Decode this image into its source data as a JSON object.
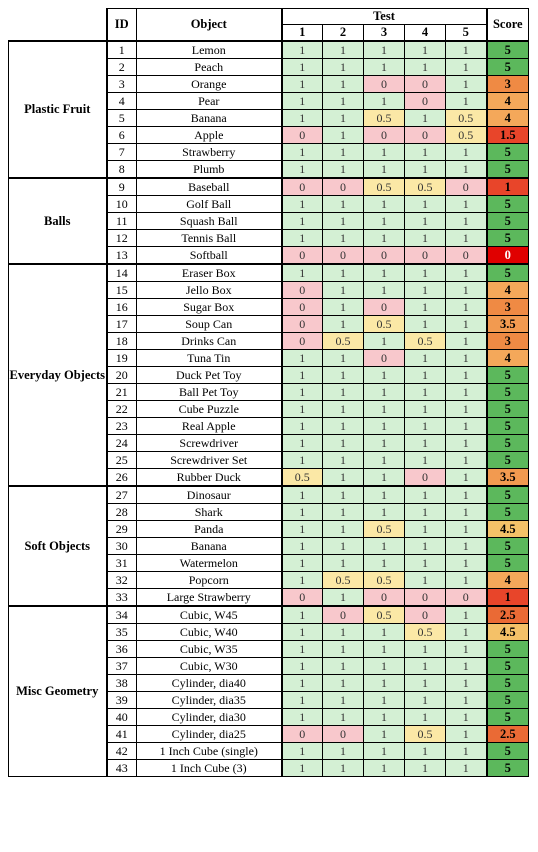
{
  "header": {
    "id_label": "ID",
    "object_label": "Object",
    "test_label": "Test",
    "score_label": "Score",
    "test_numbers": [
      "1",
      "2",
      "3",
      "4",
      "5"
    ]
  },
  "colors": {
    "test_1": "#d4f0d4",
    "test_0.5": "#fbe8a6",
    "test_0": "#f8c8cc",
    "score_5": "#5cb85c",
    "score_4.5": "#f4c168",
    "score_4": "#f4a85a",
    "score_3.5": "#f29a50",
    "score_3": "#ef8a44",
    "score_2.5": "#ea6a35",
    "score_1.5": "#e8452a",
    "score_1": "#e8452a",
    "score_0": "#e00000"
  },
  "groups": [
    {
      "name": "Plastic Fruit",
      "rows": [
        {
          "id": "1",
          "object": "Lemon",
          "tests": [
            "1",
            "1",
            "1",
            "1",
            "1"
          ],
          "score": "5"
        },
        {
          "id": "2",
          "object": "Peach",
          "tests": [
            "1",
            "1",
            "1",
            "1",
            "1"
          ],
          "score": "5"
        },
        {
          "id": "3",
          "object": "Orange",
          "tests": [
            "1",
            "1",
            "0",
            "0",
            "1"
          ],
          "score": "3"
        },
        {
          "id": "4",
          "object": "Pear",
          "tests": [
            "1",
            "1",
            "1",
            "0",
            "1"
          ],
          "score": "4"
        },
        {
          "id": "5",
          "object": "Banana",
          "tests": [
            "1",
            "1",
            "0.5",
            "1",
            "0.5"
          ],
          "score": "4"
        },
        {
          "id": "6",
          "object": "Apple",
          "tests": [
            "0",
            "1",
            "0",
            "0",
            "0.5"
          ],
          "score": "1.5"
        },
        {
          "id": "7",
          "object": "Strawberry",
          "tests": [
            "1",
            "1",
            "1",
            "1",
            "1"
          ],
          "score": "5"
        },
        {
          "id": "8",
          "object": "Plumb",
          "tests": [
            "1",
            "1",
            "1",
            "1",
            "1"
          ],
          "score": "5"
        }
      ]
    },
    {
      "name": "Balls",
      "rows": [
        {
          "id": "9",
          "object": "Baseball",
          "tests": [
            "0",
            "0",
            "0.5",
            "0.5",
            "0"
          ],
          "score": "1"
        },
        {
          "id": "10",
          "object": "Golf Ball",
          "tests": [
            "1",
            "1",
            "1",
            "1",
            "1"
          ],
          "score": "5"
        },
        {
          "id": "11",
          "object": "Squash Ball",
          "tests": [
            "1",
            "1",
            "1",
            "1",
            "1"
          ],
          "score": "5"
        },
        {
          "id": "12",
          "object": "Tennis Ball",
          "tests": [
            "1",
            "1",
            "1",
            "1",
            "1"
          ],
          "score": "5"
        },
        {
          "id": "13",
          "object": "Softball",
          "tests": [
            "0",
            "0",
            "0",
            "0",
            "0"
          ],
          "score": "0"
        }
      ]
    },
    {
      "name": "Everyday Objects",
      "rows": [
        {
          "id": "14",
          "object": "Eraser Box",
          "tests": [
            "1",
            "1",
            "1",
            "1",
            "1"
          ],
          "score": "5"
        },
        {
          "id": "15",
          "object": "Jello Box",
          "tests": [
            "0",
            "1",
            "1",
            "1",
            "1"
          ],
          "score": "4"
        },
        {
          "id": "16",
          "object": "Sugar Box",
          "tests": [
            "0",
            "1",
            "0",
            "1",
            "1"
          ],
          "score": "3"
        },
        {
          "id": "17",
          "object": "Soup Can",
          "tests": [
            "0",
            "1",
            "0.5",
            "1",
            "1"
          ],
          "score": "3.5"
        },
        {
          "id": "18",
          "object": "Drinks Can",
          "tests": [
            "0",
            "0.5",
            "1",
            "0.5",
            "1"
          ],
          "score": "3"
        },
        {
          "id": "19",
          "object": "Tuna Tin",
          "tests": [
            "1",
            "1",
            "0",
            "1",
            "1"
          ],
          "score": "4"
        },
        {
          "id": "20",
          "object": "Duck Pet Toy",
          "tests": [
            "1",
            "1",
            "1",
            "1",
            "1"
          ],
          "score": "5"
        },
        {
          "id": "21",
          "object": "Ball Pet Toy",
          "tests": [
            "1",
            "1",
            "1",
            "1",
            "1"
          ],
          "score": "5"
        },
        {
          "id": "22",
          "object": "Cube Puzzle",
          "tests": [
            "1",
            "1",
            "1",
            "1",
            "1"
          ],
          "score": "5"
        },
        {
          "id": "23",
          "object": "Real Apple",
          "tests": [
            "1",
            "1",
            "1",
            "1",
            "1"
          ],
          "score": "5"
        },
        {
          "id": "24",
          "object": "Screwdriver",
          "tests": [
            "1",
            "1",
            "1",
            "1",
            "1"
          ],
          "score": "5"
        },
        {
          "id": "25",
          "object": "Screwdriver Set",
          "tests": [
            "1",
            "1",
            "1",
            "1",
            "1"
          ],
          "score": "5"
        },
        {
          "id": "26",
          "object": "Rubber Duck",
          "tests": [
            "0.5",
            "1",
            "1",
            "0",
            "1"
          ],
          "score": "3.5"
        }
      ]
    },
    {
      "name": "Soft Objects",
      "rows": [
        {
          "id": "27",
          "object": "Dinosaur",
          "tests": [
            "1",
            "1",
            "1",
            "1",
            "1"
          ],
          "score": "5"
        },
        {
          "id": "28",
          "object": "Shark",
          "tests": [
            "1",
            "1",
            "1",
            "1",
            "1"
          ],
          "score": "5"
        },
        {
          "id": "29",
          "object": "Panda",
          "tests": [
            "1",
            "1",
            "0.5",
            "1",
            "1"
          ],
          "score": "4.5"
        },
        {
          "id": "30",
          "object": "Banana",
          "tests": [
            "1",
            "1",
            "1",
            "1",
            "1"
          ],
          "score": "5"
        },
        {
          "id": "31",
          "object": "Watermelon",
          "tests": [
            "1",
            "1",
            "1",
            "1",
            "1"
          ],
          "score": "5"
        },
        {
          "id": "32",
          "object": "Popcorn",
          "tests": [
            "1",
            "0.5",
            "0.5",
            "1",
            "1"
          ],
          "score": "4"
        },
        {
          "id": "33",
          "object": "Large Strawberry",
          "tests": [
            "0",
            "1",
            "0",
            "0",
            "0"
          ],
          "score": "1"
        }
      ]
    },
    {
      "name": "Misc Geometry",
      "rows": [
        {
          "id": "34",
          "object": "Cubic, W45",
          "tests": [
            "1",
            "0",
            "0.5",
            "0",
            "1"
          ],
          "score": "2.5"
        },
        {
          "id": "35",
          "object": "Cubic, W40",
          "tests": [
            "1",
            "1",
            "1",
            "0.5",
            "1"
          ],
          "score": "4.5"
        },
        {
          "id": "36",
          "object": "Cubic, W35",
          "tests": [
            "1",
            "1",
            "1",
            "1",
            "1"
          ],
          "score": "5"
        },
        {
          "id": "37",
          "object": "Cubic, W30",
          "tests": [
            "1",
            "1",
            "1",
            "1",
            "1"
          ],
          "score": "5"
        },
        {
          "id": "38",
          "object": "Cylinder, dia40",
          "tests": [
            "1",
            "1",
            "1",
            "1",
            "1"
          ],
          "score": "5"
        },
        {
          "id": "39",
          "object": "Cylinder, dia35",
          "tests": [
            "1",
            "1",
            "1",
            "1",
            "1"
          ],
          "score": "5"
        },
        {
          "id": "40",
          "object": "Cylinder, dia30",
          "tests": [
            "1",
            "1",
            "1",
            "1",
            "1"
          ],
          "score": "5"
        },
        {
          "id": "41",
          "object": "Cylinder, dia25",
          "tests": [
            "0",
            "0",
            "1",
            "0.5",
            "1"
          ],
          "score": "2.5"
        },
        {
          "id": "42",
          "object": "1 Inch Cube (single)",
          "tests": [
            "1",
            "1",
            "1",
            "1",
            "1"
          ],
          "score": "5"
        },
        {
          "id": "43",
          "object": "1 Inch Cube (3)",
          "tests": [
            "1",
            "1",
            "1",
            "1",
            "1"
          ],
          "score": "5"
        }
      ]
    }
  ]
}
